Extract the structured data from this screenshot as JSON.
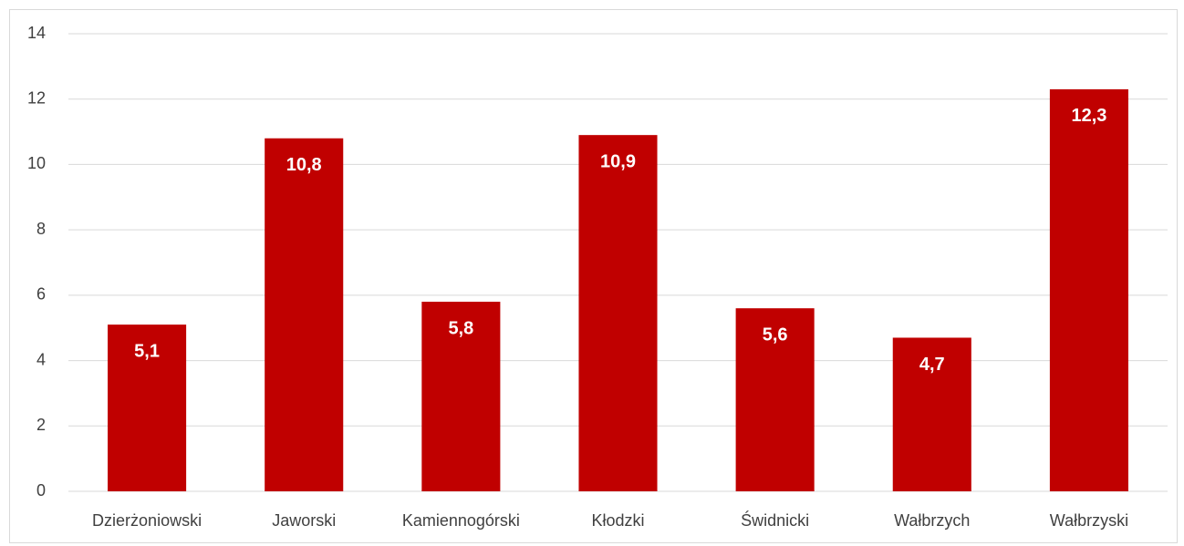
{
  "chart_data": {
    "type": "bar",
    "categories": [
      "Dzierżoniowski",
      "Jaworski",
      "Kamiennogórski",
      "Kłodzki",
      "Świdnicki",
      "Wałbrzych",
      "Wałbrzyski"
    ],
    "values": [
      5.1,
      10.8,
      5.8,
      10.9,
      5.6,
      4.7,
      12.3
    ],
    "value_labels": [
      "5,1",
      "10,8",
      "5,8",
      "10,9",
      "5,6",
      "4,7",
      "12,3"
    ],
    "color": "#c00000",
    "ylim": [
      0,
      14
    ],
    "yticks": [
      0,
      2,
      4,
      6,
      8,
      10,
      12,
      14
    ],
    "grid": true
  }
}
